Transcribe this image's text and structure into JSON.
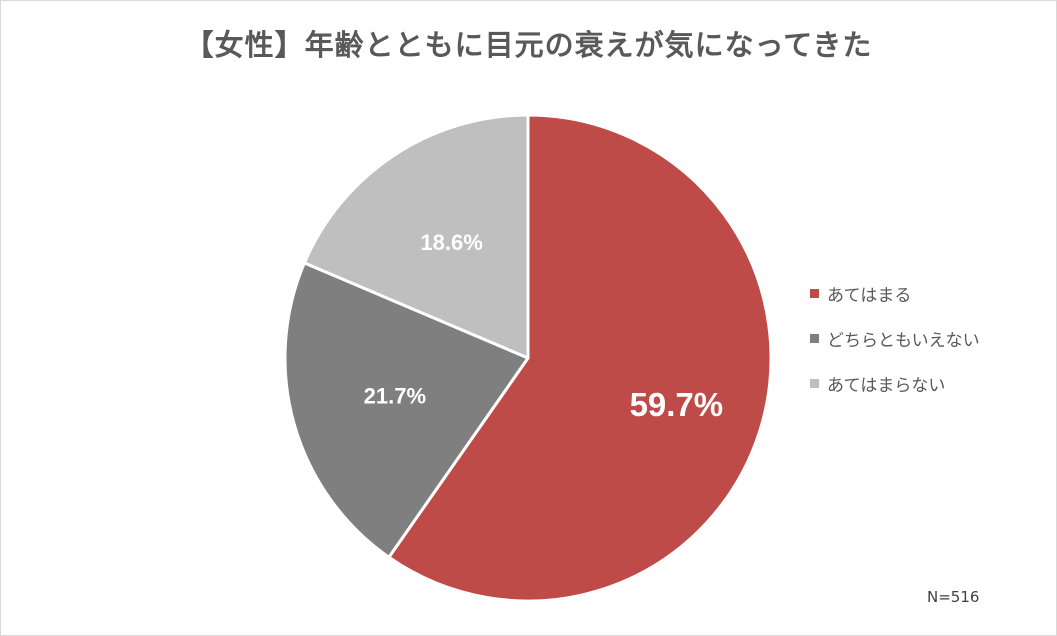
{
  "chart_data": {
    "type": "pie",
    "title": "【女性】年齢とともに目元の衰えが気になってきた",
    "slices": [
      {
        "label": "あてはまる",
        "value": 59.7,
        "display": "59.7%",
        "color": "#be4b48"
      },
      {
        "label": "どちらともいえない",
        "value": 21.7,
        "display": "21.7%",
        "color": "#7f7f7f"
      },
      {
        "label": "あてはまらない",
        "value": 18.6,
        "display": "18.6%",
        "color": "#bfbfbf"
      }
    ],
    "legend_position": "right",
    "note": "N=516"
  }
}
